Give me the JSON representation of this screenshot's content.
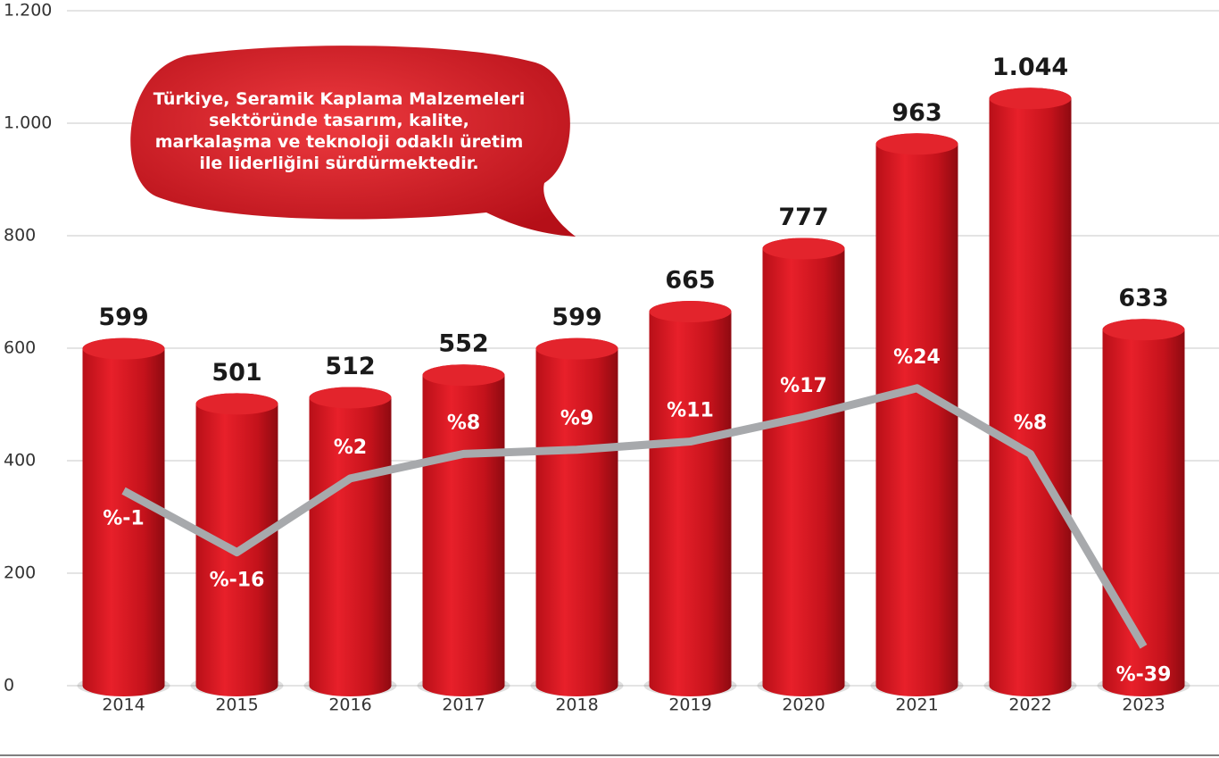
{
  "chart_data": {
    "type": "bar",
    "annotation": "Türkiye, Seramik Kaplama Malzemeleri sektöründe tasarım, kalite, markalaşma ve teknoloji odaklı üretim ile liderliğini sürdürmektedir.",
    "categories": [
      "2014",
      "2015",
      "2016",
      "2017",
      "2018",
      "2019",
      "2020",
      "2021",
      "2022",
      "2023"
    ],
    "series": [
      {
        "type": "bar",
        "color": "#d7161f",
        "values": [
          599,
          501,
          512,
          552,
          599,
          665,
          777,
          963,
          1044,
          633
        ],
        "value_labels": [
          "599",
          "501",
          "512",
          "552",
          "599",
          "665",
          "777",
          "963",
          "1.044",
          "633"
        ]
      },
      {
        "type": "line",
        "axis": "y2",
        "color": "#a7a9ac",
        "values": [
          -1,
          -16,
          2,
          8,
          9,
          11,
          17,
          24,
          8,
          -39
        ],
        "value_labels": [
          "%-1",
          "%-16",
          "%2",
          "%8",
          "%9",
          "%11",
          "%17",
          "%24",
          "%8",
          "%-39"
        ]
      }
    ],
    "ylim": [
      0,
      1200
    ],
    "yticks": [
      0,
      200,
      400,
      600,
      800,
      {
        "value": 1000,
        "label": "1.000"
      },
      {
        "value": 1200,
        "label": "1.200"
      }
    ],
    "y2lim": [
      -48.5,
      116
    ],
    "grid": true
  }
}
